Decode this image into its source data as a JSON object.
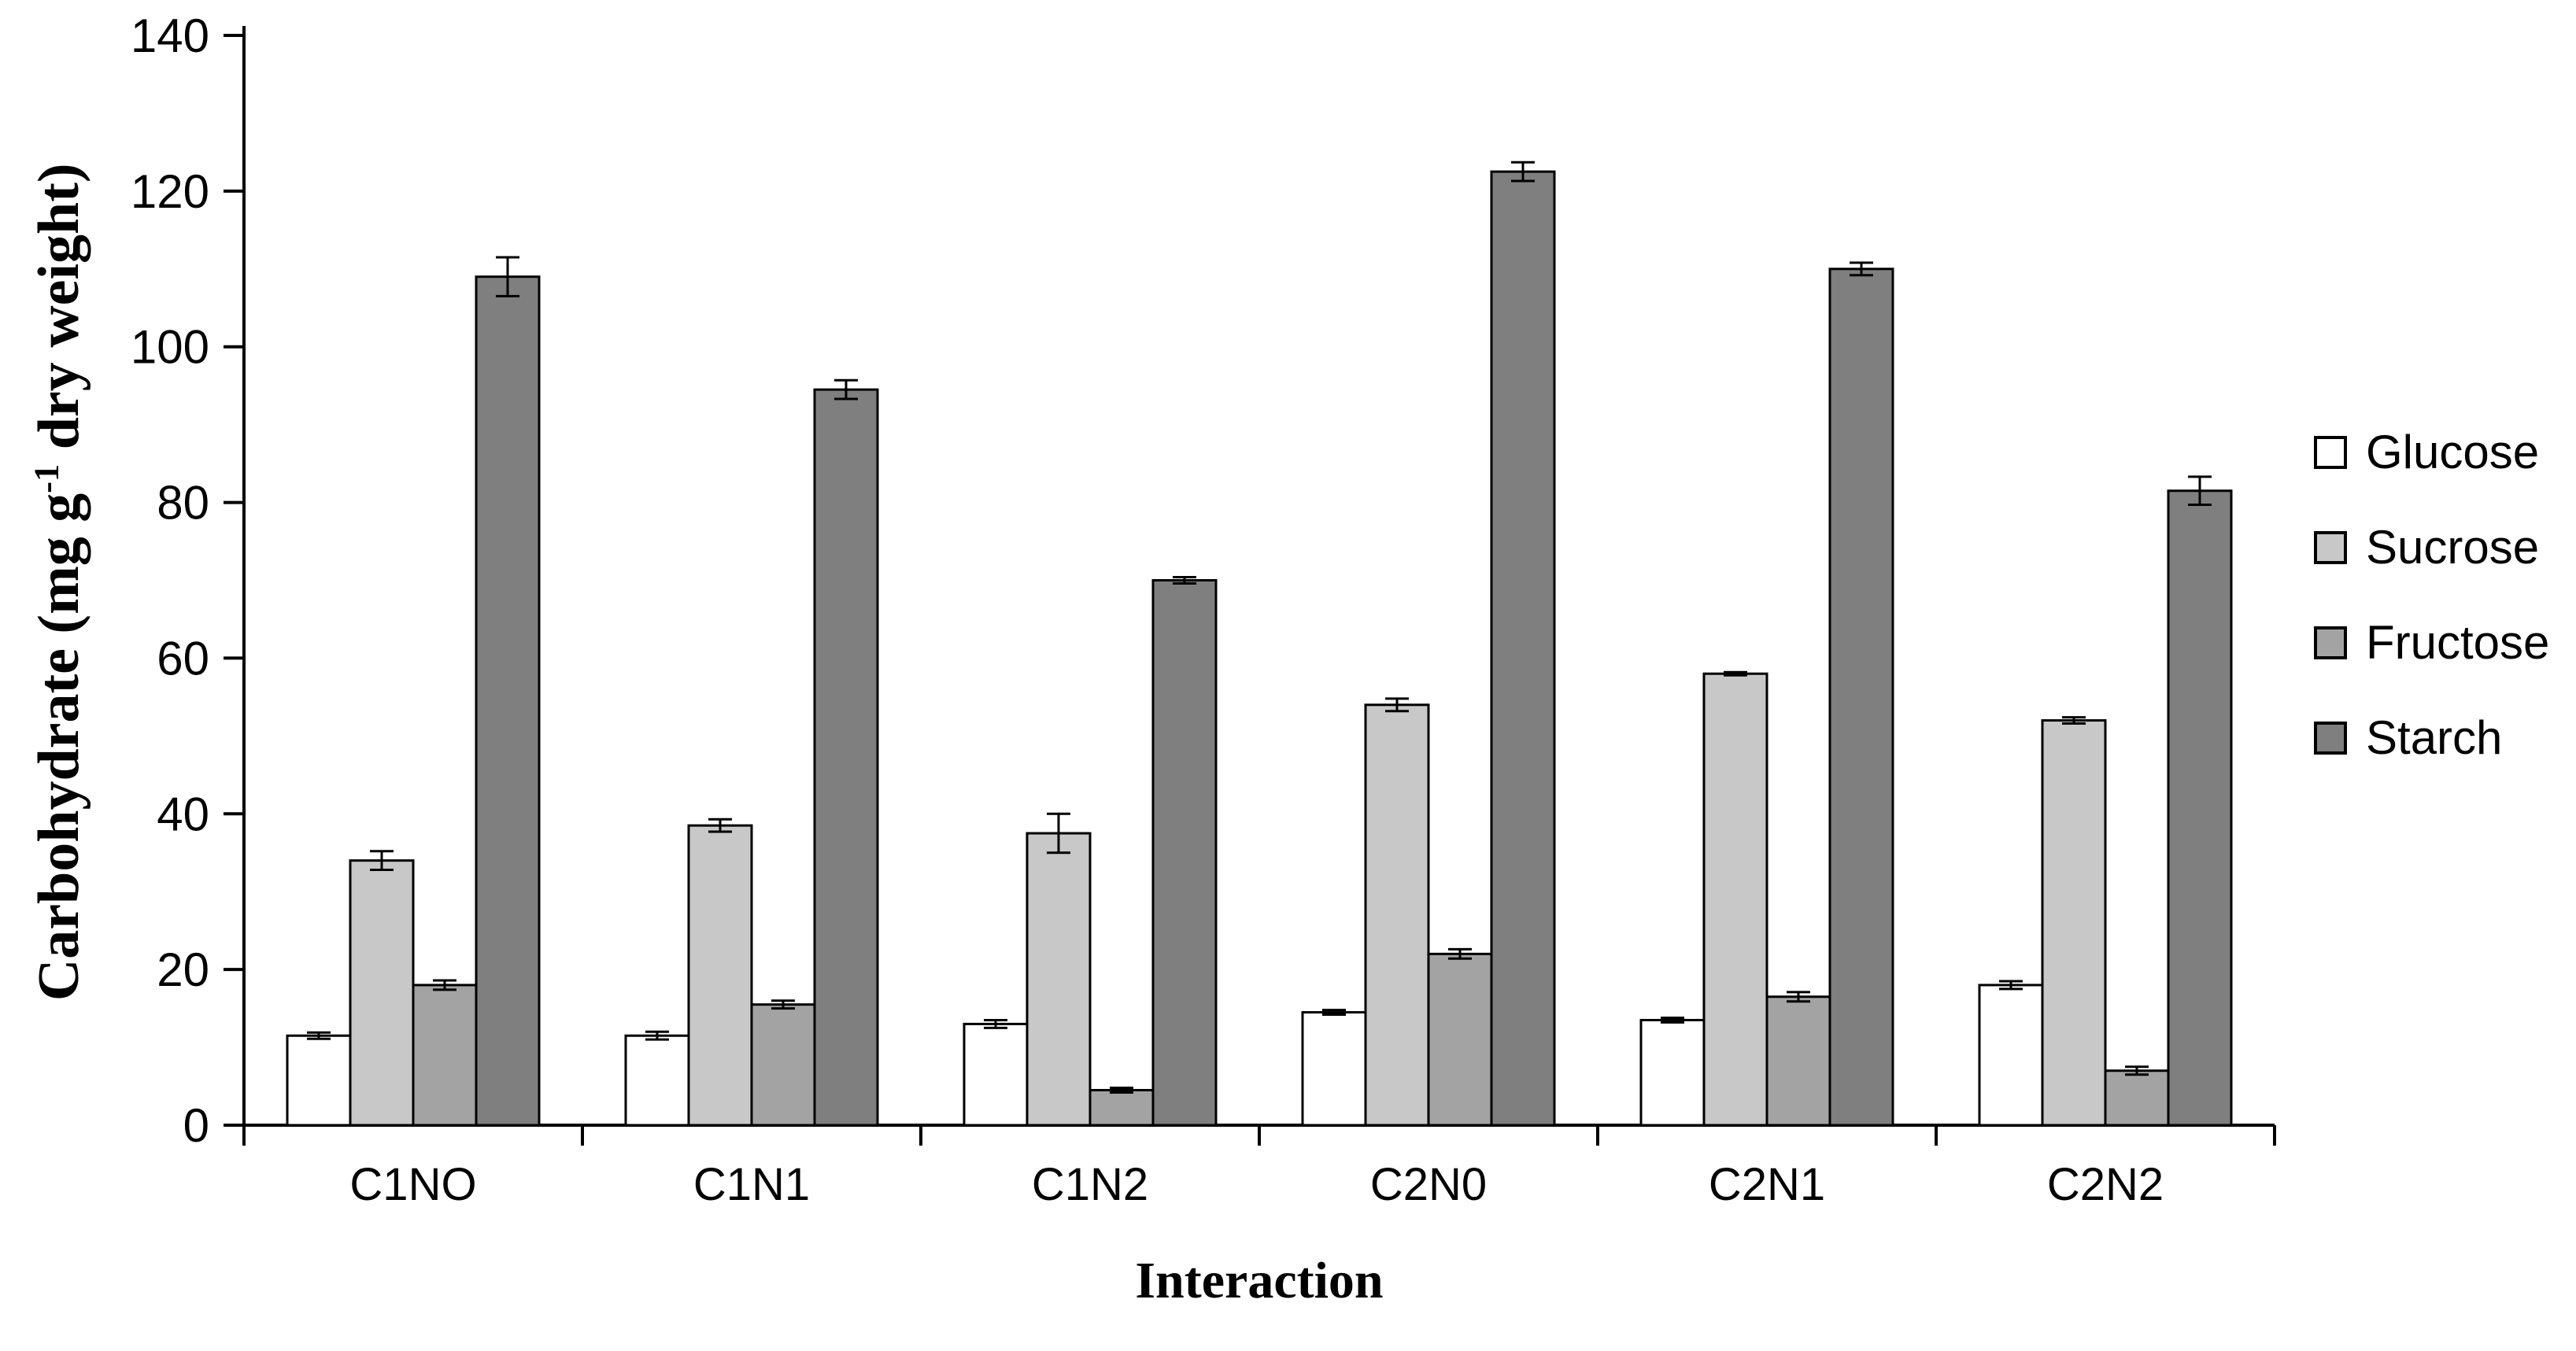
{
  "figure": {
    "background": "#ffffff",
    "axis_color": "#000000",
    "error_bar_color": "#000000"
  },
  "chart_data": {
    "type": "bar",
    "title": "",
    "xlabel": "Interaction",
    "ylabel_prefix": "Carbohydrate (mg g",
    "ylabel_superscript": "-1",
    "ylabel_suffix": " dry weight)",
    "categories": [
      "C1NO",
      "C1N1",
      "C1N2",
      "C2N0",
      "C2N1",
      "C2N2"
    ],
    "series": [
      {
        "name": "Glucose",
        "color": "#ffffff",
        "values": [
          11.5,
          11.5,
          13,
          14.5,
          13.5,
          18
        ],
        "errors": [
          0.4,
          0.5,
          0.5,
          0.3,
          0.3,
          0.5
        ]
      },
      {
        "name": "Sucrose",
        "color": "#c8c8c8",
        "values": [
          34,
          38.5,
          37.5,
          54,
          58,
          52
        ],
        "errors": [
          1.2,
          0.8,
          2.5,
          0.8,
          0.2,
          0.4
        ]
      },
      {
        "name": "Fructose",
        "color": "#a3a3a3",
        "values": [
          18,
          15.5,
          4.5,
          22,
          16.5,
          7
        ],
        "errors": [
          0.6,
          0.5,
          0.3,
          0.6,
          0.6,
          0.5
        ]
      },
      {
        "name": "Starch",
        "color": "#7f7f7f",
        "values": [
          109,
          94.5,
          70,
          122.5,
          110,
          81.5
        ],
        "errors": [
          2.5,
          1.2,
          0.4,
          1.2,
          0.8,
          1.8
        ]
      }
    ],
    "ylim": [
      0,
      140
    ],
    "yticks": [
      0,
      20,
      40,
      60,
      80,
      100,
      120,
      140
    ],
    "grid": false,
    "legend_position": "right",
    "bar_outline": "#000000"
  }
}
